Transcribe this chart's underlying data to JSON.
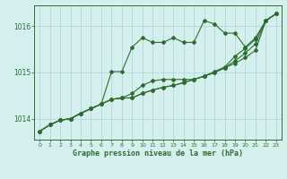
{
  "title": "Graphe pression niveau de la mer (hPa)",
  "background_color": "#d4efee",
  "grid_color": "#b0d8d8",
  "line_color": "#2d6e2d",
  "xlim": [
    -0.5,
    23.5
  ],
  "ylim": [
    1013.55,
    1016.45
  ],
  "yticks": [
    1014,
    1015,
    1016
  ],
  "xticks": [
    0,
    1,
    2,
    3,
    4,
    5,
    6,
    7,
    8,
    9,
    10,
    11,
    12,
    13,
    14,
    15,
    16,
    17,
    18,
    19,
    20,
    21,
    22,
    23
  ],
  "series1": [
    1013.73,
    1013.87,
    1013.97,
    1014.0,
    1014.12,
    1014.22,
    1014.32,
    1015.02,
    1015.02,
    1015.55,
    1015.75,
    1015.65,
    1015.65,
    1015.75,
    1015.65,
    1015.65,
    1016.12,
    1016.05,
    1015.85,
    1015.85,
    1015.55,
    1015.75,
    1016.12,
    1016.27
  ],
  "series2": [
    1013.73,
    1013.87,
    1013.97,
    1014.0,
    1014.12,
    1014.22,
    1014.32,
    1014.42,
    1014.45,
    1014.45,
    1014.55,
    1014.62,
    1014.68,
    1014.72,
    1014.78,
    1014.85,
    1014.92,
    1015.0,
    1015.1,
    1015.2,
    1015.32,
    1015.48,
    1016.12,
    1016.27
  ],
  "series3": [
    1013.73,
    1013.87,
    1013.97,
    1014.0,
    1014.12,
    1014.22,
    1014.32,
    1014.42,
    1014.45,
    1014.45,
    1014.55,
    1014.62,
    1014.68,
    1014.72,
    1014.78,
    1014.85,
    1014.92,
    1015.0,
    1015.1,
    1015.25,
    1015.42,
    1015.62,
    1016.12,
    1016.27
  ],
  "series4": [
    1013.73,
    1013.87,
    1013.97,
    1014.0,
    1014.12,
    1014.22,
    1014.32,
    1014.42,
    1014.45,
    1014.55,
    1014.72,
    1014.82,
    1014.85,
    1014.85,
    1014.85,
    1014.85,
    1014.92,
    1015.02,
    1015.12,
    1015.35,
    1015.52,
    1015.72,
    1016.12,
    1016.27
  ]
}
